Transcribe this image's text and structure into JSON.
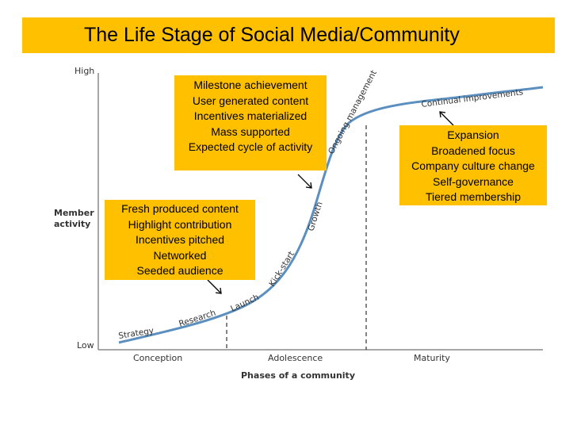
{
  "title": "The Life Stage of Social Media/Community",
  "axes": {
    "y_high": "High",
    "y_low": "Low",
    "y_label": [
      "Member",
      "activity"
    ],
    "x_label": "Phases of a community",
    "phases": [
      "Conception",
      "Adolescence",
      "Maturity"
    ]
  },
  "curve_labels": [
    "Strategy",
    "Research",
    "Launch",
    "Kick-start",
    "Growth",
    "Ongoing management",
    "Continual improvements"
  ],
  "boxes": {
    "top": [
      "Milestone achievement",
      "User generated content",
      "Incentives materialized",
      "Mass supported",
      "Expected cycle of activity"
    ],
    "left": [
      "Fresh produced content",
      "Highlight contribution",
      "Incentives pitched",
      "Networked",
      "Seeded audience"
    ],
    "right": [
      "Expansion",
      "Broadened focus",
      "Company culture change",
      "Self-governance",
      "Tiered membership"
    ]
  },
  "colors": {
    "accent": "#ffc000",
    "curve": "#5b8fbf"
  }
}
